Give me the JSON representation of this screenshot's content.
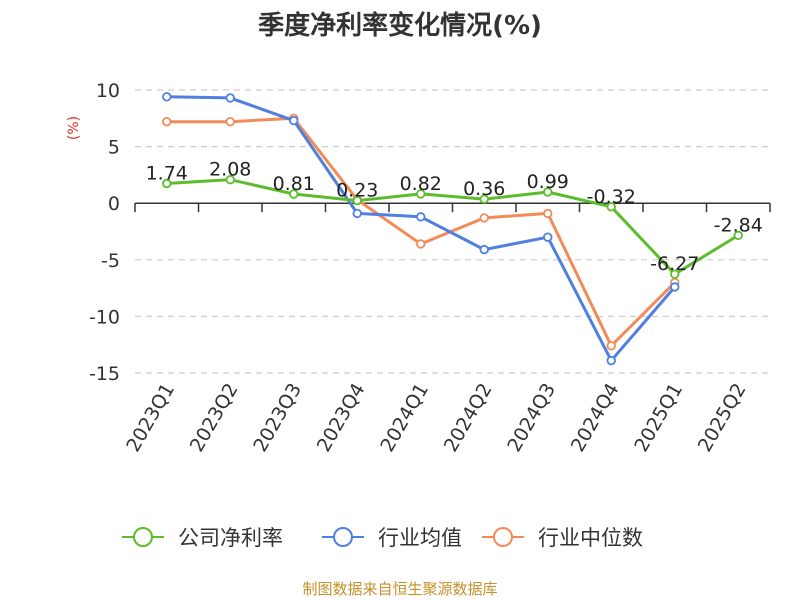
{
  "colors": {
    "company": "#5bbd2b",
    "industry_avg": "#4f7fe0",
    "industry_median": "#f28b57",
    "ylabel": "#e0312f",
    "source": "#c8902a",
    "grid": "#cccccc"
  },
  "footer": {
    "source": "制图数据来自恒生聚源数据库"
  },
  "chart_data": {
    "type": "line",
    "title": "季度净利率变化情况(%)",
    "ylabel": "(%)",
    "xlabel": "",
    "ylim": [
      -15,
      10
    ],
    "yticks": [
      10,
      5,
      0,
      -5,
      -10,
      -15
    ],
    "grid": "horizontal-dashed",
    "legend_position": "bottom",
    "categories": [
      "2023Q1",
      "2023Q2",
      "2023Q3",
      "2023Q4",
      "2024Q1",
      "2024Q2",
      "2024Q3",
      "2024Q4",
      "2025Q1",
      "2025Q2"
    ],
    "series": [
      {
        "name": "公司净利率",
        "color": "#5bbd2b",
        "values": [
          1.74,
          2.08,
          0.81,
          0.23,
          0.82,
          0.36,
          0.99,
          -0.32,
          -6.27,
          -2.84
        ],
        "labels": [
          "1.74",
          "2.08",
          "0.81",
          "0.23",
          "0.82",
          "0.36",
          "0.99",
          "-0.32",
          "-6.27",
          "-2.84"
        ]
      },
      {
        "name": "行业均值",
        "color": "#4f7fe0",
        "values": [
          9.4,
          9.3,
          7.3,
          -0.9,
          -1.2,
          -4.1,
          -3.0,
          -13.9,
          -7.4,
          null
        ]
      },
      {
        "name": "行业中位数",
        "color": "#f28b57",
        "values": [
          7.2,
          7.2,
          7.5,
          0.3,
          -3.6,
          -1.3,
          -0.9,
          -12.6,
          -7.0,
          null
        ]
      }
    ]
  }
}
